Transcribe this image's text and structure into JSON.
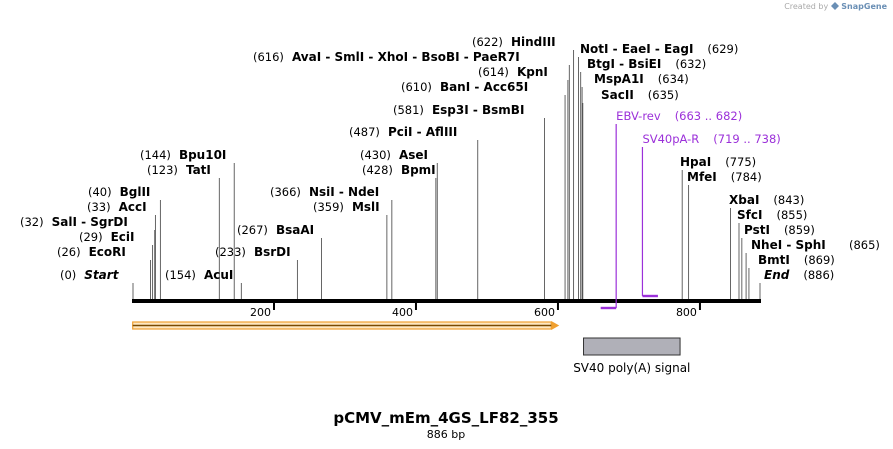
{
  "credit": {
    "prefix": "Created by",
    "brand": "SnapGene"
  },
  "sequence": {
    "length": 886
  },
  "title": "pCMV_mEm_4GS_LF82_355",
  "subtitle": "886 bp",
  "ticks": [
    {
      "value": 200,
      "label": "200"
    },
    {
      "value": 400,
      "label": "400"
    },
    {
      "value": 600,
      "label": "600"
    },
    {
      "value": 800,
      "label": "800"
    }
  ],
  "sites": [
    {
      "id": "start",
      "pos": 0,
      "pos_label": "(0)",
      "names": [
        "Start"
      ],
      "italic": true
    },
    {
      "id": "ecori",
      "pos": 26,
      "pos_label": "(26)",
      "names": [
        "EcoRI"
      ]
    },
    {
      "id": "ecii",
      "pos": 29,
      "pos_label": "(29)",
      "names": [
        "EciI"
      ]
    },
    {
      "id": "sali",
      "pos": 32,
      "pos_label": "(32)",
      "names": [
        "SalI",
        "SgrDI"
      ]
    },
    {
      "id": "acci",
      "pos": 33,
      "pos_label": "(33)",
      "names": [
        "AccI"
      ]
    },
    {
      "id": "bglii",
      "pos": 40,
      "pos_label": "(40)",
      "names": [
        "BglII"
      ]
    },
    {
      "id": "tati",
      "pos": 123,
      "pos_label": "(123)",
      "names": [
        "TatI"
      ]
    },
    {
      "id": "bpu10i",
      "pos": 144,
      "pos_label": "(144)",
      "names": [
        "Bpu10I"
      ]
    },
    {
      "id": "acui",
      "pos": 154,
      "pos_label": "(154)",
      "names": [
        "AcuI"
      ]
    },
    {
      "id": "bsrdi",
      "pos": 233,
      "pos_label": "(233)",
      "names": [
        "BsrDI"
      ]
    },
    {
      "id": "bsaai",
      "pos": 267,
      "pos_label": "(267)",
      "names": [
        "BsaAI"
      ]
    },
    {
      "id": "msli",
      "pos": 359,
      "pos_label": "(359)",
      "names": [
        "MslI"
      ]
    },
    {
      "id": "nsii",
      "pos": 366,
      "pos_label": "(366)",
      "names": [
        "NsiI",
        "NdeI"
      ]
    },
    {
      "id": "bpmi",
      "pos": 428,
      "pos_label": "(428)",
      "names": [
        "BpmI"
      ]
    },
    {
      "id": "asei",
      "pos": 430,
      "pos_label": "(430)",
      "names": [
        "AseI"
      ]
    },
    {
      "id": "pcii",
      "pos": 487,
      "pos_label": "(487)",
      "names": [
        "PciI",
        "AflIII"
      ]
    },
    {
      "id": "esp3i",
      "pos": 581,
      "pos_label": "(581)",
      "names": [
        "Esp3I",
        "BsmBI"
      ]
    },
    {
      "id": "bani",
      "pos": 610,
      "pos_label": "(610)",
      "names": [
        "BanI",
        "Acc65I"
      ]
    },
    {
      "id": "kpni",
      "pos": 614,
      "pos_label": "(614)",
      "names": [
        "KpnI"
      ]
    },
    {
      "id": "avai",
      "pos": 616,
      "pos_label": "(616)",
      "names": [
        "AvaI",
        "SmlI",
        "XhoI",
        "BsoBI",
        "PaeR7I"
      ]
    },
    {
      "id": "hindiii",
      "pos": 622,
      "pos_label": "(622)",
      "names": [
        "HindIII"
      ]
    },
    {
      "id": "noti",
      "pos": 629,
      "pos_label": "(629)",
      "names": [
        "NotI",
        "EaeI",
        "EagI"
      ]
    },
    {
      "id": "btgi",
      "pos": 632,
      "pos_label": "(632)",
      "names": [
        "BtgI",
        "BsiEI"
      ]
    },
    {
      "id": "mspa1i",
      "pos": 634,
      "pos_label": "(634)",
      "names": [
        "MspA1I"
      ]
    },
    {
      "id": "sacii",
      "pos": 635,
      "pos_label": "(635)",
      "names": [
        "SacII"
      ]
    },
    {
      "id": "hpai",
      "pos": 775,
      "pos_label": "(775)",
      "names": [
        "HpaI"
      ]
    },
    {
      "id": "mfei",
      "pos": 784,
      "pos_label": "(784)",
      "names": [
        "MfeI"
      ]
    },
    {
      "id": "xbai",
      "pos": 843,
      "pos_label": "(843)",
      "names": [
        "XbaI"
      ]
    },
    {
      "id": "sfci",
      "pos": 855,
      "pos_label": "(855)",
      "names": [
        "SfcI"
      ]
    },
    {
      "id": "psti",
      "pos": 859,
      "pos_label": "(859)",
      "names": [
        "PstI"
      ]
    },
    {
      "id": "nhei",
      "pos": 865,
      "pos_label": "(865)",
      "names": [
        "NheI",
        "SphI"
      ]
    },
    {
      "id": "bmti",
      "pos": 869,
      "pos_label": "(869)",
      "names": [
        "BmtI"
      ]
    },
    {
      "id": "end",
      "pos": 886,
      "pos_label": "(886)",
      "names": [
        "End"
      ],
      "italic": true
    }
  ],
  "primers": [
    {
      "id": "ebv-rev",
      "name": "EBV-rev",
      "range_label": "(663 .. 682)",
      "start": 663,
      "end": 682,
      "color": "#9b30d9"
    },
    {
      "id": "sv40pa-r",
      "name": "SV40pA-R",
      "range_label": "(719 .. 738)",
      "start": 719,
      "end": 738,
      "color": "#9b30d9"
    }
  ],
  "features": [
    {
      "id": "orf-arrow",
      "name": "",
      "start": 1,
      "end": 599,
      "color": "#f0a030",
      "type": "arrow"
    },
    {
      "id": "sv40-polya",
      "name": "SV40 poly(A) signal",
      "start": 636,
      "end": 772,
      "color": "#b0b0b8",
      "type": "box"
    }
  ],
  "colors": {
    "backbone": "#000000",
    "primer": "#9b30d9",
    "orf": "#f0a030",
    "polya": "#b0b0b8"
  }
}
